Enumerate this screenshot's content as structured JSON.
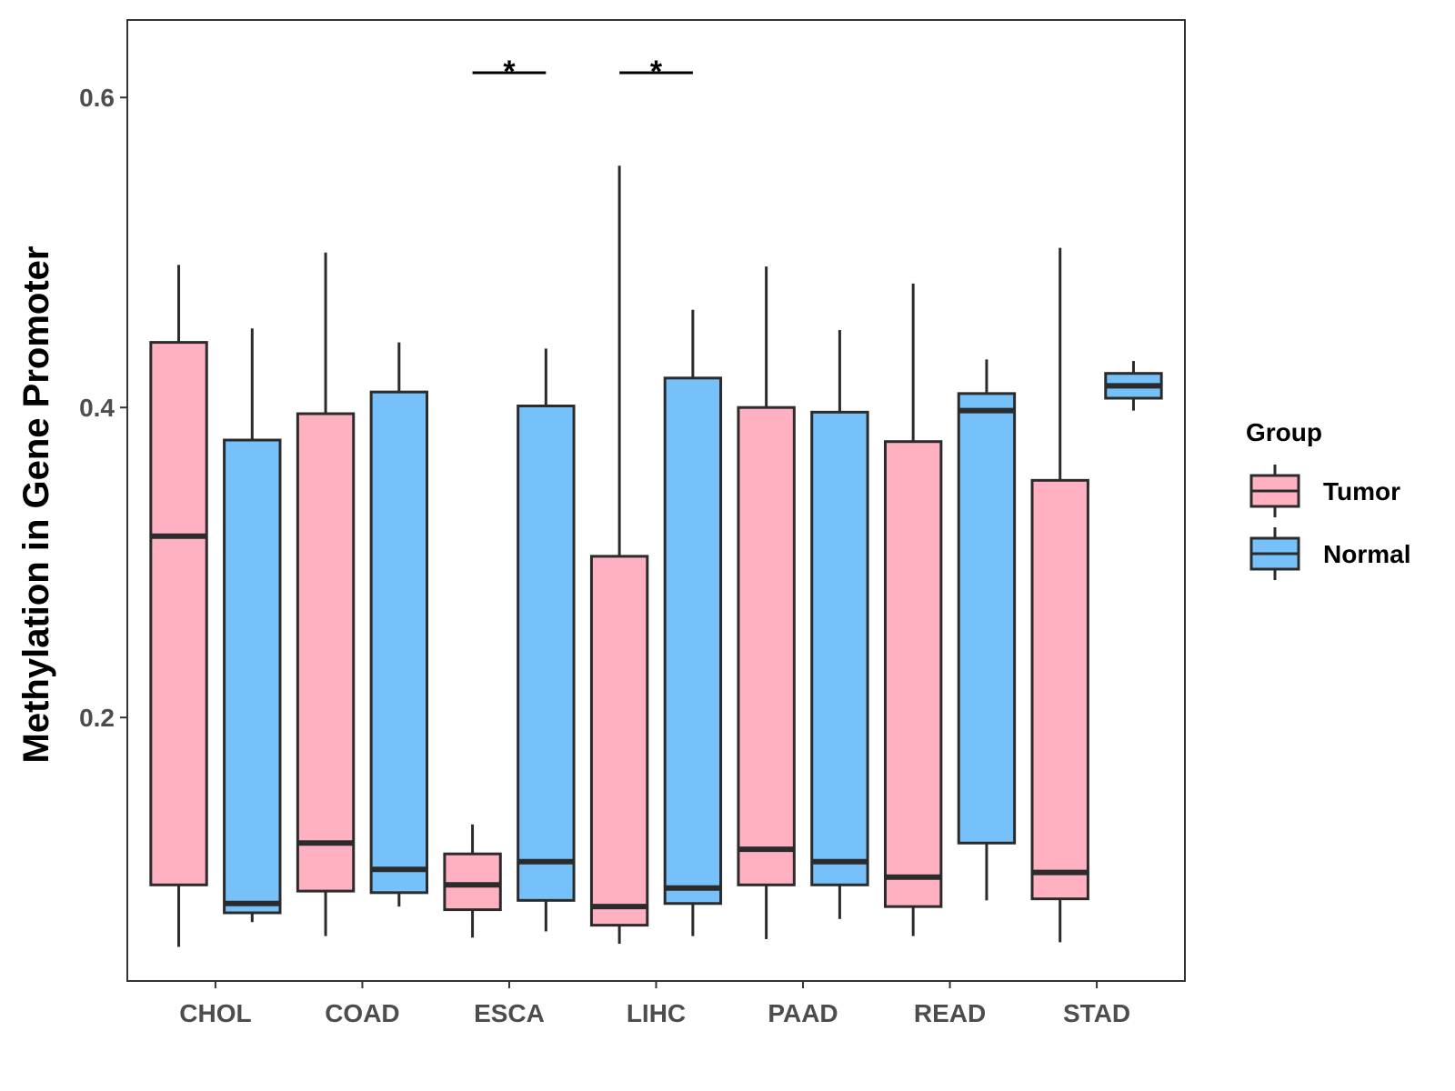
{
  "chart_data": {
    "type": "boxplot",
    "title": "",
    "xlabel": "",
    "ylabel": "Methylation in Gene Promoter",
    "ylim": [
      0.03,
      0.65
    ],
    "yticks": [
      0.2,
      0.4,
      0.6
    ],
    "ytick_labels": [
      "0.2",
      "0.4",
      "0.6"
    ],
    "categories": [
      "CHOL",
      "COAD",
      "ESCA",
      "LIHC",
      "PAAD",
      "READ",
      "STAD"
    ],
    "legend": {
      "title": "Group",
      "position": "right",
      "entries": [
        {
          "name": "Tumor",
          "color": "#FFB0C1"
        },
        {
          "name": "Normal",
          "color": "#76C1F9"
        }
      ]
    },
    "series": [
      {
        "name": "Tumor",
        "color": "#FFB0C1",
        "boxes": [
          {
            "category": "CHOL",
            "min": 0.052,
            "q1": 0.092,
            "median": 0.317,
            "q3": 0.442,
            "max": 0.492
          },
          {
            "category": "COAD",
            "min": 0.059,
            "q1": 0.088,
            "median": 0.119,
            "q3": 0.396,
            "max": 0.5
          },
          {
            "category": "ESCA",
            "min": 0.058,
            "q1": 0.076,
            "median": 0.092,
            "q3": 0.112,
            "max": 0.131
          },
          {
            "category": "LIHC",
            "min": 0.054,
            "q1": 0.066,
            "median": 0.078,
            "q3": 0.304,
            "max": 0.556
          },
          {
            "category": "PAAD",
            "min": 0.057,
            "q1": 0.092,
            "median": 0.115,
            "q3": 0.4,
            "max": 0.491
          },
          {
            "category": "READ",
            "min": 0.059,
            "q1": 0.078,
            "median": 0.097,
            "q3": 0.378,
            "max": 0.48
          },
          {
            "category": "STAD",
            "min": 0.055,
            "q1": 0.083,
            "median": 0.1,
            "q3": 0.353,
            "max": 0.503
          }
        ]
      },
      {
        "name": "Normal",
        "color": "#76C1F9",
        "boxes": [
          {
            "category": "CHOL",
            "min": 0.068,
            "q1": 0.074,
            "median": 0.08,
            "q3": 0.379,
            "max": 0.451
          },
          {
            "category": "COAD",
            "min": 0.078,
            "q1": 0.087,
            "median": 0.102,
            "q3": 0.41,
            "max": 0.442
          },
          {
            "category": "ESCA",
            "min": 0.062,
            "q1": 0.082,
            "median": 0.107,
            "q3": 0.401,
            "max": 0.438
          },
          {
            "category": "LIHC",
            "min": 0.059,
            "q1": 0.08,
            "median": 0.09,
            "q3": 0.419,
            "max": 0.463
          },
          {
            "category": "PAAD",
            "min": 0.07,
            "q1": 0.092,
            "median": 0.107,
            "q3": 0.397,
            "max": 0.45
          },
          {
            "category": "READ",
            "min": 0.082,
            "q1": 0.119,
            "median": 0.398,
            "q3": 0.409,
            "max": 0.431
          },
          {
            "category": "STAD",
            "min": 0.398,
            "q1": 0.406,
            "median": 0.414,
            "q3": 0.422,
            "max": 0.43
          }
        ]
      }
    ],
    "annotations": [
      {
        "category": "ESCA",
        "label": "*",
        "y": 0.616
      },
      {
        "category": "LIHC",
        "label": "*",
        "y": 0.616
      }
    ],
    "grid": false
  }
}
